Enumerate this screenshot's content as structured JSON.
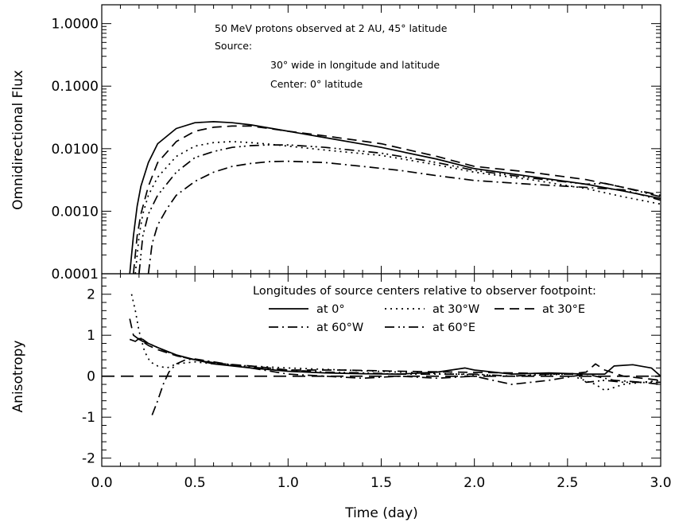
{
  "chart_data": [
    {
      "type": "line",
      "panel": "top",
      "ylabel": "Omnidirectional Flux",
      "yscale": "log",
      "ylim": [
        0.0001,
        2.0
      ],
      "xlim": [
        0.0,
        3.0
      ],
      "yticks": [
        {
          "value": 0.0001,
          "label": "0.0001"
        },
        {
          "value": 0.001,
          "label": "0.0010"
        },
        {
          "value": 0.01,
          "label": "0.0100"
        },
        {
          "value": 0.1,
          "label": "0.1000"
        },
        {
          "value": 1.0,
          "label": "1.0000"
        }
      ],
      "annotations": [
        "50 MeV protons observed at 2 AU, 45° latitude",
        "Source:",
        "30° wide in longitude and latitude",
        "Center: 0° latitude"
      ],
      "series": [
        {
          "name": "at 0°",
          "style": "solid",
          "x": [
            0.15,
            0.17,
            0.19,
            0.21,
            0.25,
            0.3,
            0.4,
            0.5,
            0.6,
            0.7,
            0.8,
            1.0,
            1.2,
            1.5,
            1.8,
            2.0,
            2.3,
            2.6,
            2.8,
            3.0
          ],
          "y": [
            0.0001,
            0.0004,
            0.0012,
            0.0025,
            0.006,
            0.012,
            0.021,
            0.026,
            0.027,
            0.026,
            0.024,
            0.019,
            0.015,
            0.0105,
            0.0068,
            0.0048,
            0.0036,
            0.0027,
            0.0021,
            0.0016
          ]
        },
        {
          "name": "at 30°E",
          "style": "dashed",
          "x": [
            0.17,
            0.19,
            0.21,
            0.25,
            0.3,
            0.4,
            0.5,
            0.6,
            0.7,
            0.8,
            0.9,
            1.0,
            1.2,
            1.5,
            1.8,
            2.0,
            2.3,
            2.6,
            2.8,
            3.0
          ],
          "y": [
            0.0001,
            0.0004,
            0.0009,
            0.0025,
            0.006,
            0.013,
            0.019,
            0.022,
            0.023,
            0.023,
            0.021,
            0.019,
            0.016,
            0.012,
            0.0075,
            0.0052,
            0.0042,
            0.0032,
            0.0024,
            0.0018
          ]
        },
        {
          "name": "at 30°W",
          "style": "dotted",
          "x": [
            0.18,
            0.2,
            0.22,
            0.25,
            0.3,
            0.4,
            0.5,
            0.6,
            0.7,
            0.8,
            0.9,
            1.0,
            1.2,
            1.5,
            1.8,
            2.0,
            2.3,
            2.6,
            2.8,
            3.0
          ],
          "y": [
            0.0001,
            0.0004,
            0.0009,
            0.0018,
            0.0035,
            0.0075,
            0.011,
            0.0125,
            0.013,
            0.0125,
            0.0118,
            0.011,
            0.0095,
            0.0078,
            0.0055,
            0.0042,
            0.0032,
            0.0023,
            0.0017,
            0.0013
          ]
        },
        {
          "name": "at 60°E",
          "style": "dash-dot-dot",
          "x": [
            0.2,
            0.22,
            0.25,
            0.3,
            0.4,
            0.5,
            0.6,
            0.7,
            0.8,
            0.9,
            1.0,
            1.2,
            1.5,
            1.8,
            2.0,
            2.3,
            2.6,
            2.7,
            2.8,
            3.0
          ],
          "y": [
            0.0001,
            0.0004,
            0.0009,
            0.0018,
            0.0042,
            0.0072,
            0.009,
            0.0105,
            0.0112,
            0.0115,
            0.0115,
            0.0105,
            0.0085,
            0.006,
            0.0045,
            0.0034,
            0.0027,
            0.0028,
            0.0024,
            0.0017
          ]
        },
        {
          "name": "at 60°W",
          "style": "dash-dot",
          "x": [
            0.25,
            0.27,
            0.3,
            0.35,
            0.4,
            0.5,
            0.6,
            0.7,
            0.8,
            0.9,
            1.0,
            1.2,
            1.4,
            1.6,
            1.8,
            2.0,
            2.3,
            2.6,
            2.8,
            3.0
          ],
          "y": [
            0.0001,
            0.0003,
            0.0006,
            0.0011,
            0.0018,
            0.003,
            0.0042,
            0.0052,
            0.0058,
            0.0062,
            0.0063,
            0.006,
            0.0052,
            0.0045,
            0.0037,
            0.0031,
            0.0027,
            0.0024,
            0.0022,
            0.0015
          ]
        }
      ]
    },
    {
      "type": "line",
      "panel": "bottom",
      "xlabel": "Time (day)",
      "ylabel": "Anisotropy",
      "xlim": [
        0.0,
        3.0
      ],
      "ylim": [
        -2.2,
        2.5
      ],
      "xticks": [
        {
          "value": 0.0,
          "label": "0.0"
        },
        {
          "value": 0.5,
          "label": "0.5"
        },
        {
          "value": 1.0,
          "label": "1.0"
        },
        {
          "value": 1.5,
          "label": "1.5"
        },
        {
          "value": 2.0,
          "label": "2.0"
        },
        {
          "value": 2.5,
          "label": "2.5"
        },
        {
          "value": 3.0,
          "label": "3.0"
        }
      ],
      "yticks": [
        {
          "value": -2,
          "label": "-2"
        },
        {
          "value": -1,
          "label": "-1"
        },
        {
          "value": 0,
          "label": "0"
        },
        {
          "value": 1,
          "label": "1"
        },
        {
          "value": 2,
          "label": "2"
        }
      ],
      "reference_line": {
        "y": 0,
        "style": "long-dashed"
      },
      "legend": {
        "title": "Longitudes of source centers relative to observer footpoint:",
        "placement": "top-right",
        "entries": [
          {
            "label": "at 0°",
            "style": "solid"
          },
          {
            "label": "at 30°W",
            "style": "dotted"
          },
          {
            "label": "at 30°E",
            "style": "dashed"
          },
          {
            "label": "at 60°W",
            "style": "dash-dot"
          },
          {
            "label": "at 60°E",
            "style": "dash-dot-dot"
          }
        ]
      },
      "series": [
        {
          "name": "at 0°",
          "style": "solid",
          "x": [
            0.15,
            0.18,
            0.2,
            0.22,
            0.25,
            0.3,
            0.4,
            0.5,
            0.6,
            0.8,
            1.0,
            1.2,
            1.4,
            1.6,
            1.8,
            1.95,
            2.0,
            2.2,
            2.4,
            2.6,
            2.7,
            2.75,
            2.85,
            2.95,
            3.0
          ],
          "y": [
            0.9,
            0.85,
            0.92,
            0.9,
            0.8,
            0.7,
            0.52,
            0.4,
            0.3,
            0.2,
            0.12,
            0.08,
            0.06,
            0.05,
            0.1,
            0.2,
            0.15,
            0.05,
            0.08,
            0.05,
            0.05,
            0.25,
            0.28,
            0.2,
            0.0
          ]
        },
        {
          "name": "at 30°W",
          "style": "dotted",
          "x": [
            0.16,
            0.18,
            0.2,
            0.23,
            0.26,
            0.3,
            0.35,
            0.4,
            0.5,
            0.6,
            0.8,
            1.0,
            1.3,
            1.6,
            1.9,
            2.2,
            2.5,
            2.65,
            2.7,
            2.8,
            3.0
          ],
          "y": [
            2.0,
            1.6,
            1.1,
            0.6,
            0.35,
            0.25,
            0.2,
            0.3,
            0.35,
            0.3,
            0.25,
            0.2,
            0.15,
            0.1,
            0.05,
            0.0,
            0.05,
            -0.2,
            -0.35,
            -0.2,
            -0.1
          ]
        },
        {
          "name": "at 30°E",
          "style": "dashed",
          "x": [
            0.15,
            0.17,
            0.2,
            0.25,
            0.3,
            0.4,
            0.5,
            0.6,
            0.8,
            1.0,
            1.3,
            1.6,
            1.9,
            2.2,
            2.5,
            2.6,
            2.65,
            2.7,
            2.8,
            3.0
          ],
          "y": [
            1.4,
            1.0,
            0.9,
            0.75,
            0.65,
            0.5,
            0.4,
            0.32,
            0.25,
            0.15,
            0.15,
            0.12,
            0.1,
            0.08,
            0.05,
            0.1,
            0.3,
            0.15,
            0.0,
            -0.1
          ]
        },
        {
          "name": "at 60°W",
          "style": "dash-dot",
          "x": [
            0.27,
            0.3,
            0.33,
            0.36,
            0.4,
            0.45,
            0.5,
            0.6,
            0.8,
            1.0,
            1.2,
            1.4,
            1.6,
            1.8,
            2.0,
            2.1,
            2.2,
            2.4,
            2.6,
            2.75,
            2.9,
            3.0
          ],
          "y": [
            -0.95,
            -0.6,
            -0.2,
            0.1,
            0.3,
            0.4,
            0.42,
            0.35,
            0.2,
            0.05,
            0.0,
            -0.05,
            0.0,
            -0.05,
            0.0,
            -0.1,
            -0.2,
            -0.1,
            0.05,
            -0.1,
            -0.15,
            -0.2
          ]
        },
        {
          "name": "at 60°E",
          "style": "dash-dot-dot",
          "x": [
            0.2,
            0.22,
            0.25,
            0.3,
            0.35,
            0.4,
            0.5,
            0.6,
            0.8,
            1.0,
            1.2,
            1.4,
            1.6,
            1.8,
            2.0,
            2.2,
            2.4,
            2.55,
            2.6,
            2.7,
            2.8,
            3.0
          ],
          "y": [
            0.9,
            0.85,
            0.8,
            0.7,
            0.6,
            0.5,
            0.4,
            0.33,
            0.22,
            0.15,
            0.1,
            0.08,
            0.05,
            0.05,
            0.05,
            0.0,
            0.05,
            0.05,
            -0.15,
            -0.1,
            -0.15,
            -0.15
          ]
        }
      ]
    }
  ]
}
